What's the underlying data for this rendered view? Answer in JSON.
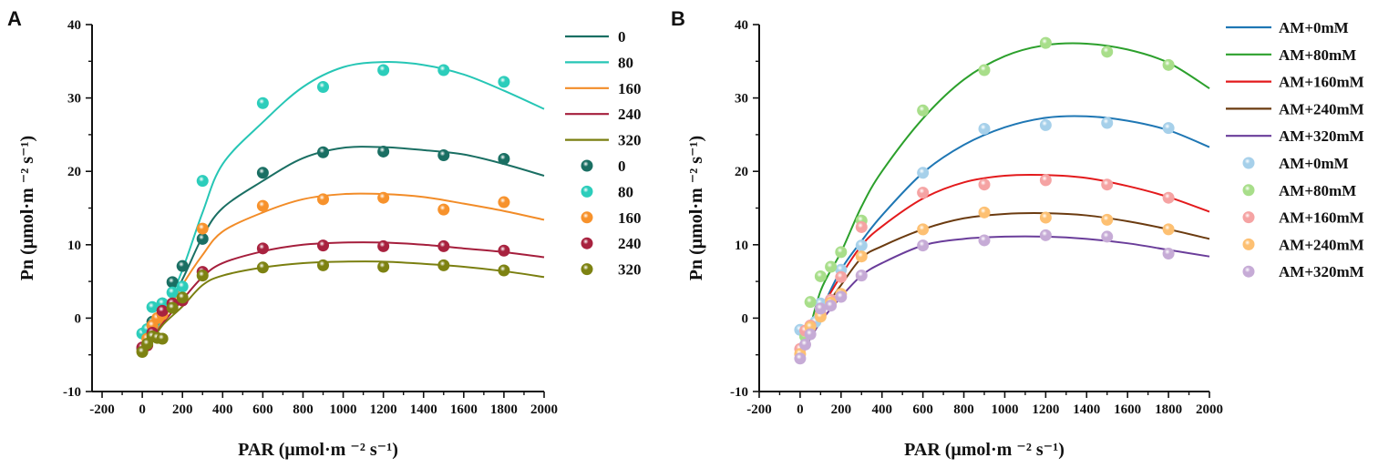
{
  "chart_data": [
    {
      "panel_label": "A",
      "type": "scatter",
      "xlabel": "PAR (μmol·m ⁻² s⁻¹)",
      "ylabel": "Pn (μmol·m ⁻² s⁻¹)",
      "xlim": [
        -250,
        2000
      ],
      "ylim": [
        -10,
        40
      ],
      "xticks": [
        -200,
        0,
        200,
        400,
        600,
        800,
        1000,
        1200,
        1400,
        1600,
        1800,
        2000
      ],
      "yticks": [
        -10,
        0,
        10,
        20,
        30,
        40
      ],
      "legend_position": "right",
      "curve_x": [
        50,
        100,
        200,
        300,
        400,
        600,
        800,
        1000,
        1200,
        1400,
        1600,
        1800,
        2000
      ],
      "series": [
        {
          "name": "0",
          "line_color": "#1a6f63",
          "marker_color": "#1a6f63",
          "curve_y": [
            -2.5,
            0.5,
            5.3,
            11.1,
            15,
            18.7,
            21.8,
            23.2,
            23.3,
            22.9,
            22.3,
            21.0,
            19.4
          ],
          "points": [
            [
              0,
              -4.2
            ],
            [
              50,
              -0.5
            ],
            [
              100,
              2.0
            ],
            [
              150,
              4.9
            ],
            [
              200,
              7.1
            ],
            [
              300,
              10.8
            ],
            [
              600,
              19.8
            ],
            [
              900,
              22.6
            ],
            [
              1200,
              22.7
            ],
            [
              1500,
              22.2
            ],
            [
              1800,
              21.7
            ]
          ]
        },
        {
          "name": "80",
          "line_color": "#26c6b5",
          "marker_color": "#2ccdbb",
          "curve_y": [
            -3,
            0,
            6.6,
            14.4,
            21,
            26.7,
            31.5,
            34.2,
            34.9,
            34.5,
            33.2,
            31.0,
            28.5
          ],
          "points": [
            [
              0,
              -2.1
            ],
            [
              25,
              -1.5
            ],
            [
              50,
              1.5
            ],
            [
              100,
              2.0
            ],
            [
              150,
              3.5
            ],
            [
              200,
              4.3
            ],
            [
              300,
              18.7
            ],
            [
              600,
              29.3
            ],
            [
              900,
              31.5
            ],
            [
              1200,
              33.8
            ],
            [
              1500,
              33.8
            ],
            [
              1800,
              32.2
            ]
          ]
        },
        {
          "name": "160",
          "line_color": "#f28c28",
          "marker_color": "#f7922c",
          "curve_y": [
            -3,
            -0.5,
            4.5,
            8.6,
            11.8,
            14.4,
            16.2,
            16.9,
            16.9,
            16.5,
            15.6,
            14.6,
            13.4
          ],
          "points": [
            [
              0,
              -4.5
            ],
            [
              25,
              -2.8
            ],
            [
              50,
              -1.0
            ],
            [
              75,
              0.0
            ],
            [
              100,
              0.5
            ],
            [
              150,
              2.0
            ],
            [
              200,
              2.5
            ],
            [
              300,
              12.2
            ],
            [
              600,
              15.3
            ],
            [
              900,
              16.2
            ],
            [
              1200,
              16.4
            ],
            [
              1500,
              14.8
            ],
            [
              1800,
              15.8
            ]
          ]
        },
        {
          "name": "240",
          "line_color": "#a51e3c",
          "marker_color": "#a8223f",
          "curve_y": [
            -3,
            -0.8,
            2.5,
            5.6,
            7.5,
            9.1,
            10.0,
            10.3,
            10.3,
            10.0,
            9.5,
            9.0,
            8.3
          ],
          "points": [
            [
              0,
              -4.0
            ],
            [
              25,
              -3.7
            ],
            [
              50,
              -2.0
            ],
            [
              100,
              1.0
            ],
            [
              150,
              2.0
            ],
            [
              200,
              2.4
            ],
            [
              300,
              6.3
            ],
            [
              600,
              9.5
            ],
            [
              900,
              9.9
            ],
            [
              1200,
              9.8
            ],
            [
              1500,
              9.8
            ],
            [
              1800,
              9.2
            ]
          ]
        },
        {
          "name": "320",
          "line_color": "#7a7f10",
          "marker_color": "#7d8212",
          "curve_y": [
            -3.2,
            -1,
            1.6,
            4.5,
            5.8,
            6.9,
            7.5,
            7.7,
            7.7,
            7.4,
            7.0,
            6.4,
            5.6
          ],
          "points": [
            [
              0,
              -4.6
            ],
            [
              25,
              -3.5
            ],
            [
              50,
              -2.5
            ],
            [
              75,
              -2.7
            ],
            [
              100,
              -2.8
            ],
            [
              150,
              1.4
            ],
            [
              200,
              2.8
            ],
            [
              300,
              5.8
            ],
            [
              600,
              6.9
            ],
            [
              900,
              7.2
            ],
            [
              1200,
              7.0
            ],
            [
              1500,
              7.2
            ],
            [
              1800,
              6.5
            ]
          ]
        }
      ]
    },
    {
      "panel_label": "B",
      "type": "scatter",
      "xlabel": "PAR (μmol·m ⁻² s⁻¹)",
      "ylabel": "Pn (μmol·m ⁻² s⁻¹)",
      "xlim": [
        -200,
        2000
      ],
      "ylim": [
        -10,
        40
      ],
      "xticks": [
        -200,
        0,
        200,
        400,
        600,
        800,
        1000,
        1200,
        1400,
        1600,
        1800,
        2000
      ],
      "yticks": [
        -10,
        0,
        10,
        20,
        30,
        40
      ],
      "legend_position": "right",
      "curve_x": [
        25,
        100,
        200,
        300,
        400,
        600,
        800,
        1000,
        1200,
        1400,
        1600,
        1800,
        2000
      ],
      "series": [
        {
          "name": "AM+0mM",
          "line_color": "#1f77b4",
          "marker_color": "#a6d0ea",
          "curve_y": [
            -3,
            1,
            6.6,
            10.5,
            14,
            19.8,
            23.6,
            26,
            27.3,
            27.5,
            26.9,
            25.6,
            23.3
          ],
          "points": [
            [
              0,
              -1.6
            ],
            [
              25,
              -2.5
            ],
            [
              75,
              -0.5
            ],
            [
              100,
              2.0
            ],
            [
              150,
              2.5
            ],
            [
              200,
              6.6
            ],
            [
              300,
              9.9
            ],
            [
              600,
              19.8
            ],
            [
              900,
              25.8
            ],
            [
              1200,
              26.3
            ],
            [
              1500,
              26.6
            ],
            [
              1800,
              25.9
            ]
          ]
        },
        {
          "name": "AM+80mM",
          "line_color": "#2ca02c",
          "marker_color": "#a8de8a",
          "curve_y": [
            -4,
            3.7,
            9,
            15.2,
            20,
            27.2,
            32.5,
            35.7,
            37.2,
            37.4,
            36.6,
            34.8,
            31.3
          ],
          "points": [
            [
              25,
              -2.5
            ],
            [
              50,
              2.2
            ],
            [
              100,
              5.7
            ],
            [
              150,
              7.0
            ],
            [
              200,
              9.0
            ],
            [
              300,
              13.3
            ],
            [
              600,
              28.3
            ],
            [
              900,
              33.8
            ],
            [
              1200,
              37.5
            ],
            [
              1500,
              36.3
            ],
            [
              1800,
              34.5
            ]
          ]
        },
        {
          "name": "AM+160mM",
          "line_color": "#e31a1c",
          "marker_color": "#f5a3a3",
          "curve_y": [
            -3.5,
            1,
            5.8,
            9.9,
            12.5,
            16.3,
            18.5,
            19.4,
            19.5,
            19.1,
            18,
            16.5,
            14.5
          ],
          "points": [
            [
              0,
              -4.2
            ],
            [
              25,
              -1.7
            ],
            [
              50,
              -1.0
            ],
            [
              100,
              0.5
            ],
            [
              150,
              2.5
            ],
            [
              200,
              5.6
            ],
            [
              300,
              12.4
            ],
            [
              600,
              17.1
            ],
            [
              900,
              18.2
            ],
            [
              1200,
              18.8
            ],
            [
              1500,
              18.2
            ],
            [
              1800,
              16.4
            ]
          ]
        },
        {
          "name": "AM+240mM",
          "line_color": "#6b3b10",
          "marker_color": "#fdc072",
          "curve_y": [
            -3.5,
            0.5,
            4.5,
            8.2,
            9.8,
            12.1,
            13.6,
            14.2,
            14.3,
            14.0,
            13.2,
            12.1,
            10.8
          ],
          "points": [
            [
              0,
              -4.9
            ],
            [
              50,
              -1.2
            ],
            [
              100,
              0.2
            ],
            [
              150,
              2.1
            ],
            [
              200,
              3.3
            ],
            [
              300,
              8.4
            ],
            [
              600,
              12.1
            ],
            [
              900,
              14.4
            ],
            [
              1200,
              13.7
            ],
            [
              1500,
              13.4
            ],
            [
              1800,
              12.1
            ]
          ]
        },
        {
          "name": "AM+320mM",
          "line_color": "#6a3d9a",
          "marker_color": "#c6abd6",
          "curve_y": [
            -4,
            -0.5,
            2.9,
            5.8,
            7.5,
            9.9,
            10.8,
            11.1,
            11.1,
            10.8,
            10.2,
            9.3,
            8.4
          ],
          "points": [
            [
              0,
              -5.5
            ],
            [
              25,
              -3.6
            ],
            [
              50,
              -2.2
            ],
            [
              100,
              1.3
            ],
            [
              150,
              1.7
            ],
            [
              200,
              2.9
            ],
            [
              300,
              5.8
            ],
            [
              600,
              9.9
            ],
            [
              900,
              10.6
            ],
            [
              1200,
              11.3
            ],
            [
              1500,
              11.1
            ],
            [
              1800,
              8.8
            ]
          ]
        }
      ]
    }
  ]
}
